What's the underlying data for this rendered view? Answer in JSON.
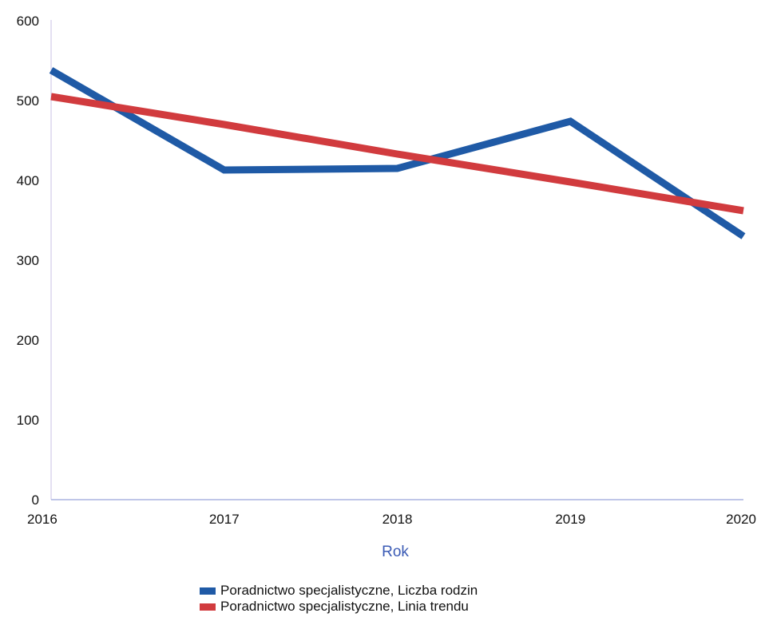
{
  "chart_data": {
    "type": "line",
    "x": [
      2016,
      2017,
      2018,
      2019,
      2020
    ],
    "xticks": [
      "2016",
      "2017",
      "2018",
      "2019",
      "2020"
    ],
    "yticks": [
      "0",
      "100",
      "200",
      "300",
      "400",
      "500",
      "600"
    ],
    "ylim": [
      0,
      600
    ],
    "xlabel": "Rok",
    "ylabel": "",
    "grid": false,
    "legend_position": "bottom",
    "series": [
      {
        "name": "Poradnictwo specjalistyczne, Liczba rodzin",
        "color": "#1f5aa6",
        "values": [
          538,
          413,
          415,
          474,
          330
        ]
      },
      {
        "name": "Poradnictwo specjalistyczne, Linia trendu",
        "color": "#d13b3e",
        "values": [
          505,
          470,
          433,
          398,
          362
        ]
      }
    ]
  }
}
